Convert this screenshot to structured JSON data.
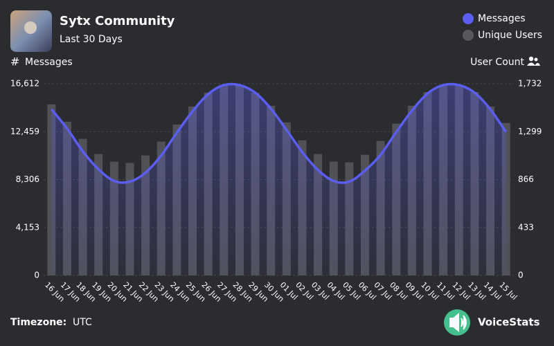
{
  "chart_data": {
    "type": "combo",
    "title": "Sytx Community",
    "subtitle": "Last 30 Days",
    "y_label": "Messages",
    "y2_label": "User Count",
    "legend": "top-right",
    "grid": true,
    "categories": [
      "16 Jun",
      "17 Jun",
      "18 Jun",
      "19 Jun",
      "20 Jun",
      "21 Jun",
      "22 Jun",
      "23 Jun",
      "24 Jun",
      "25 Jun",
      "26 Jun",
      "27 Jun",
      "28 Jun",
      "29 Jun",
      "30 Jun",
      "01 Jul",
      "02 Jul",
      "03 Jul",
      "04 Jul",
      "05 Jul",
      "06 Jul",
      "07 Jul",
      "08 Jul",
      "09 Jul",
      "10 Jul",
      "11 Jul",
      "12 Jul",
      "13 Jul",
      "14 Jul",
      "15 Jul"
    ],
    "ylim": [
      0,
      16612
    ],
    "yticks": [
      0,
      {
        "value": 4153,
        "label": "4,153"
      },
      {
        "value": 8306,
        "label": "8,306"
      },
      {
        "value": 12459,
        "label": "12,459"
      },
      {
        "value": 16612,
        "label": "16,612"
      }
    ],
    "y2lim": [
      0,
      1732
    ],
    "y2ticks": [
      0,
      433,
      866,
      {
        "value": 1299,
        "label": "1,299"
      },
      {
        "value": 1732,
        "label": "1,732"
      }
    ],
    "series": [
      {
        "name": "Messages",
        "type": "line",
        "color": "#5b5ef0",
        "values": [
          14401,
          12728,
          10756,
          9202,
          8187,
          8127,
          8904,
          10398,
          12369,
          14222,
          15716,
          16493,
          16493,
          15835,
          14461,
          12608,
          10696,
          9142,
          8187,
          8127,
          9083,
          10457,
          12429,
          14282,
          15775,
          16493,
          16493,
          15835,
          14401,
          12429
        ]
      },
      {
        "name": "Unique Users",
        "type": "bar",
        "color": "#58595e",
        "axis": "y2",
        "values": [
          1545,
          1389,
          1234,
          1097,
          1028,
          1016,
          1084,
          1209,
          1364,
          1526,
          1651,
          1720,
          1720,
          1651,
          1533,
          1383,
          1221,
          1097,
          1028,
          1022,
          1090,
          1215,
          1371,
          1533,
          1657,
          1720,
          1720,
          1657,
          1526,
          1377
        ]
      }
    ]
  },
  "footer": {
    "timezone_label": "Timezone:",
    "timezone": "UTC",
    "brand": "VoiceStats"
  }
}
